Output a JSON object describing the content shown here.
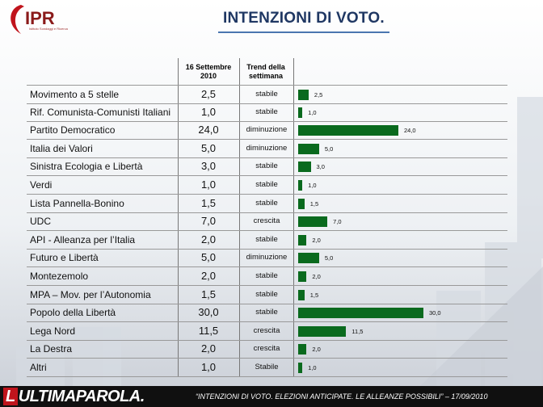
{
  "header": {
    "logo_text": "IPR",
    "logo_tagline": "Istituto Sondaggi e Ricerca",
    "title": "INTENZIONI DI VOTO."
  },
  "table": {
    "col_date_line1": "16 Settembre",
    "col_date_line2": "2010",
    "col_trend_line1": "Trend della",
    "col_trend_line2": "settimana"
  },
  "chart_data": {
    "type": "bar",
    "unit": "%",
    "categories": [
      "Movimento a 5 stelle",
      "Rif. Comunista-Comunisti Italiani",
      "Partito Democratico",
      "Italia dei Valori",
      "Sinistra Ecologia e Libertà",
      "Verdi",
      "Lista Pannella-Bonino",
      "UDC",
      "API - Alleanza per l’Italia",
      "Futuro e Libertà",
      "Montezemolo",
      "MPA – Mov. per l’Autonomia",
      "Popolo della Libertà",
      "Lega Nord",
      "La Destra",
      "Altri"
    ],
    "values": [
      2.5,
      1.0,
      24.0,
      5.0,
      3.0,
      1.0,
      1.5,
      7.0,
      2.0,
      5.0,
      2.0,
      1.5,
      30.0,
      11.5,
      2.0,
      1.0
    ],
    "value_labels": [
      "2,5",
      "1,0",
      "24,0",
      "5,0",
      "3,0",
      "1,0",
      "1,5",
      "7,0",
      "2,0",
      "5,0",
      "2,0",
      "1,5",
      "30,0",
      "11,5",
      "2,0",
      "1,0"
    ],
    "trend": [
      "stabile",
      "stabile",
      "diminuzione",
      "diminuzione",
      "stabile",
      "stabile",
      "stabile",
      "crescita",
      "stabile",
      "diminuzione",
      "stabile",
      "stabile",
      "stabile",
      "crescita",
      "crescita",
      "Stabile"
    ],
    "xlim": [
      0,
      30
    ],
    "bar_color": "#0a6a1e"
  },
  "footer": {
    "brand_prefix": "L",
    "brand_rest": "ULTIMAPAROLA.",
    "caption": "“INTENZIONI DI VOTO. ELEZIONI ANTICIPATE. LE ALLEANZE POSSIBILI” – 17/09/2010"
  }
}
